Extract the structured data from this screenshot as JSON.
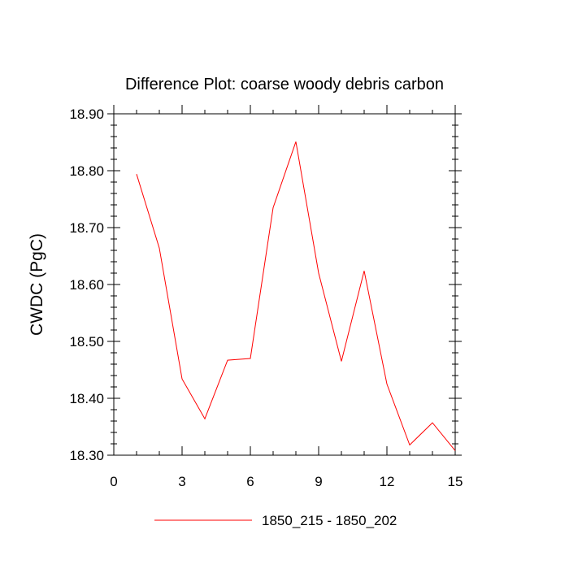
{
  "chart_data": {
    "type": "line",
    "title": "Difference Plot: coarse woody debris carbon",
    "ylabel": "CWDC  (PgC)",
    "xlabel": "",
    "xlim": [
      0,
      15
    ],
    "ylim": [
      18.3,
      18.9
    ],
    "x_ticks": [
      0,
      3,
      6,
      9,
      12,
      15
    ],
    "x_tick_labels": [
      "0",
      "3",
      "6",
      "9",
      "12",
      "15"
    ],
    "y_ticks": [
      18.3,
      18.4,
      18.5,
      18.6,
      18.7,
      18.8,
      18.9
    ],
    "y_tick_labels": [
      "18.30",
      "18.40",
      "18.50",
      "18.60",
      "18.70",
      "18.80",
      "18.90"
    ],
    "grid": false,
    "legend_position": "bottom-center",
    "series": [
      {
        "name": "1850_215 - 1850_202",
        "color": "#ff0000",
        "x": [
          1,
          2,
          3,
          4,
          5,
          6,
          7,
          8,
          9,
          10,
          11,
          12,
          13,
          14,
          15
        ],
        "y": [
          18.794,
          18.664,
          18.434,
          18.364,
          18.467,
          18.47,
          18.735,
          18.851,
          18.62,
          18.465,
          18.624,
          18.425,
          18.318,
          18.357,
          18.308
        ]
      }
    ]
  }
}
